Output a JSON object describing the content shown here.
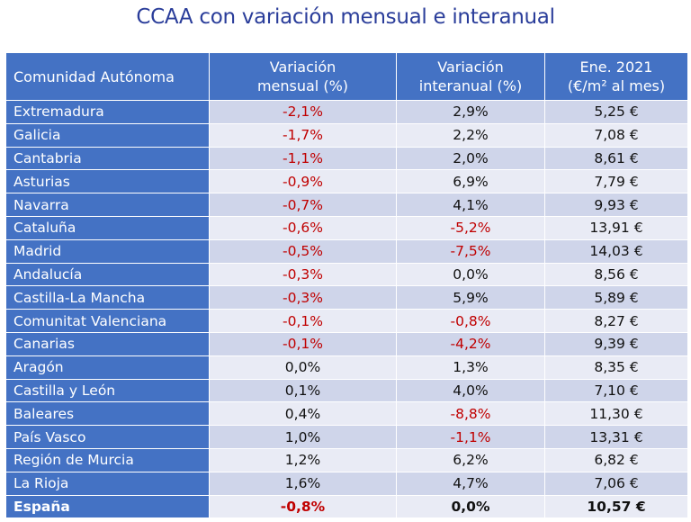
{
  "title": "CCAA con variación mensual e interanual",
  "header": {
    "col1": "Comunidad Autónoma",
    "col2_line1": "Variación",
    "col2_line2": "mensual (%)",
    "col3_line1": "Variación",
    "col3_line2": "interanual (%)",
    "col4_line1": "Ene. 2021",
    "col4_line2": "(€/m² al mes)"
  },
  "rows": [
    {
      "name": "Extremadura",
      "mensual": "-2,1%",
      "interanual": "2,9%",
      "precio": "5,25 €"
    },
    {
      "name": "Galicia",
      "mensual": "-1,7%",
      "interanual": "2,2%",
      "precio": "7,08 €"
    },
    {
      "name": "Cantabria",
      "mensual": "-1,1%",
      "interanual": "2,0%",
      "precio": "8,61 €"
    },
    {
      "name": "Asturias",
      "mensual": "-0,9%",
      "interanual": "6,9%",
      "precio": "7,79 €"
    },
    {
      "name": "Navarra",
      "mensual": "-0,7%",
      "interanual": "4,1%",
      "precio": "9,93 €"
    },
    {
      "name": "Cataluña",
      "mensual": "-0,6%",
      "interanual": "-5,2%",
      "precio": "13,91 €"
    },
    {
      "name": "Madrid",
      "mensual": "-0,5%",
      "interanual": "-7,5%",
      "precio": "14,03 €"
    },
    {
      "name": "Andalucía",
      "mensual": "-0,3%",
      "interanual": "0,0%",
      "precio": "8,56 €"
    },
    {
      "name": "Castilla-La Mancha",
      "mensual": "-0,3%",
      "interanual": "5,9%",
      "precio": "5,89 €"
    },
    {
      "name": "Comunitat Valenciana",
      "mensual": "-0,1%",
      "interanual": "-0,8%",
      "precio": "8,27 €"
    },
    {
      "name": "Canarias",
      "mensual": "-0,1%",
      "interanual": "-4,2%",
      "precio": "9,39 €"
    },
    {
      "name": "Aragón",
      "mensual": "0,0%",
      "interanual": "1,3%",
      "precio": "8,35 €"
    },
    {
      "name": "Castilla y León",
      "mensual": "0,1%",
      "interanual": "4,0%",
      "precio": "7,10 €"
    },
    {
      "name": "Baleares",
      "mensual": "0,4%",
      "interanual": "-8,8%",
      "precio": "11,30 €"
    },
    {
      "name": "País Vasco",
      "mensual": "1,0%",
      "interanual": "-1,1%",
      "precio": "13,31 €"
    },
    {
      "name": "Región de Murcia",
      "mensual": "1,2%",
      "interanual": "6,2%",
      "precio": "6,82 €"
    },
    {
      "name": "La Rioja",
      "mensual": "1,6%",
      "interanual": "4,7%",
      "precio": "7,06 €"
    }
  ],
  "total": {
    "name": "España",
    "mensual": "-0,8%",
    "interanual": "0,0%",
    "precio": "10,57 €"
  },
  "colors": {
    "title": "#2a3d9a",
    "header_bg": "#4472c4",
    "row_band_dark": "#cfd5ea",
    "row_band_light": "#e9ebf5",
    "negative": "#c00000"
  }
}
